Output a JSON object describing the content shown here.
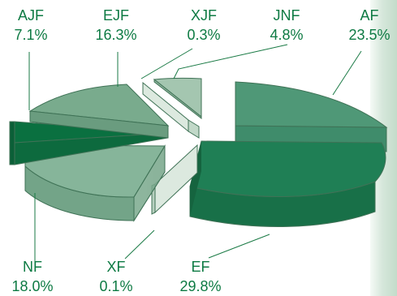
{
  "chart_data": {
    "type": "pie",
    "three_d": true,
    "exploded": true,
    "title": "",
    "slices": [
      {
        "label": "AF",
        "value_text": "23.5%",
        "value": 23.5,
        "color": "#4f9877"
      },
      {
        "label": "EF",
        "value_text": "29.8%",
        "value": 29.8,
        "color": "#1f7f55"
      },
      {
        "label": "XF",
        "value_text": "0.1%",
        "value": 0.1,
        "color": "#dce9df"
      },
      {
        "label": "NF",
        "value_text": "18.0%",
        "value": 18.0,
        "color": "#86b59a"
      },
      {
        "label": "AJF",
        "value_text": "7.1%",
        "value": 7.1,
        "color": "#0a7040"
      },
      {
        "label": "EJF",
        "value_text": "16.3%",
        "value": 16.3,
        "color": "#79ab8d"
      },
      {
        "label": "XJF",
        "value_text": "0.3%",
        "value": 0.3,
        "color": "#dce9df"
      },
      {
        "label": "JNF",
        "value_text": "4.8%",
        "value": 4.8,
        "color": "#a4c6b0"
      }
    ],
    "legend": "none"
  }
}
